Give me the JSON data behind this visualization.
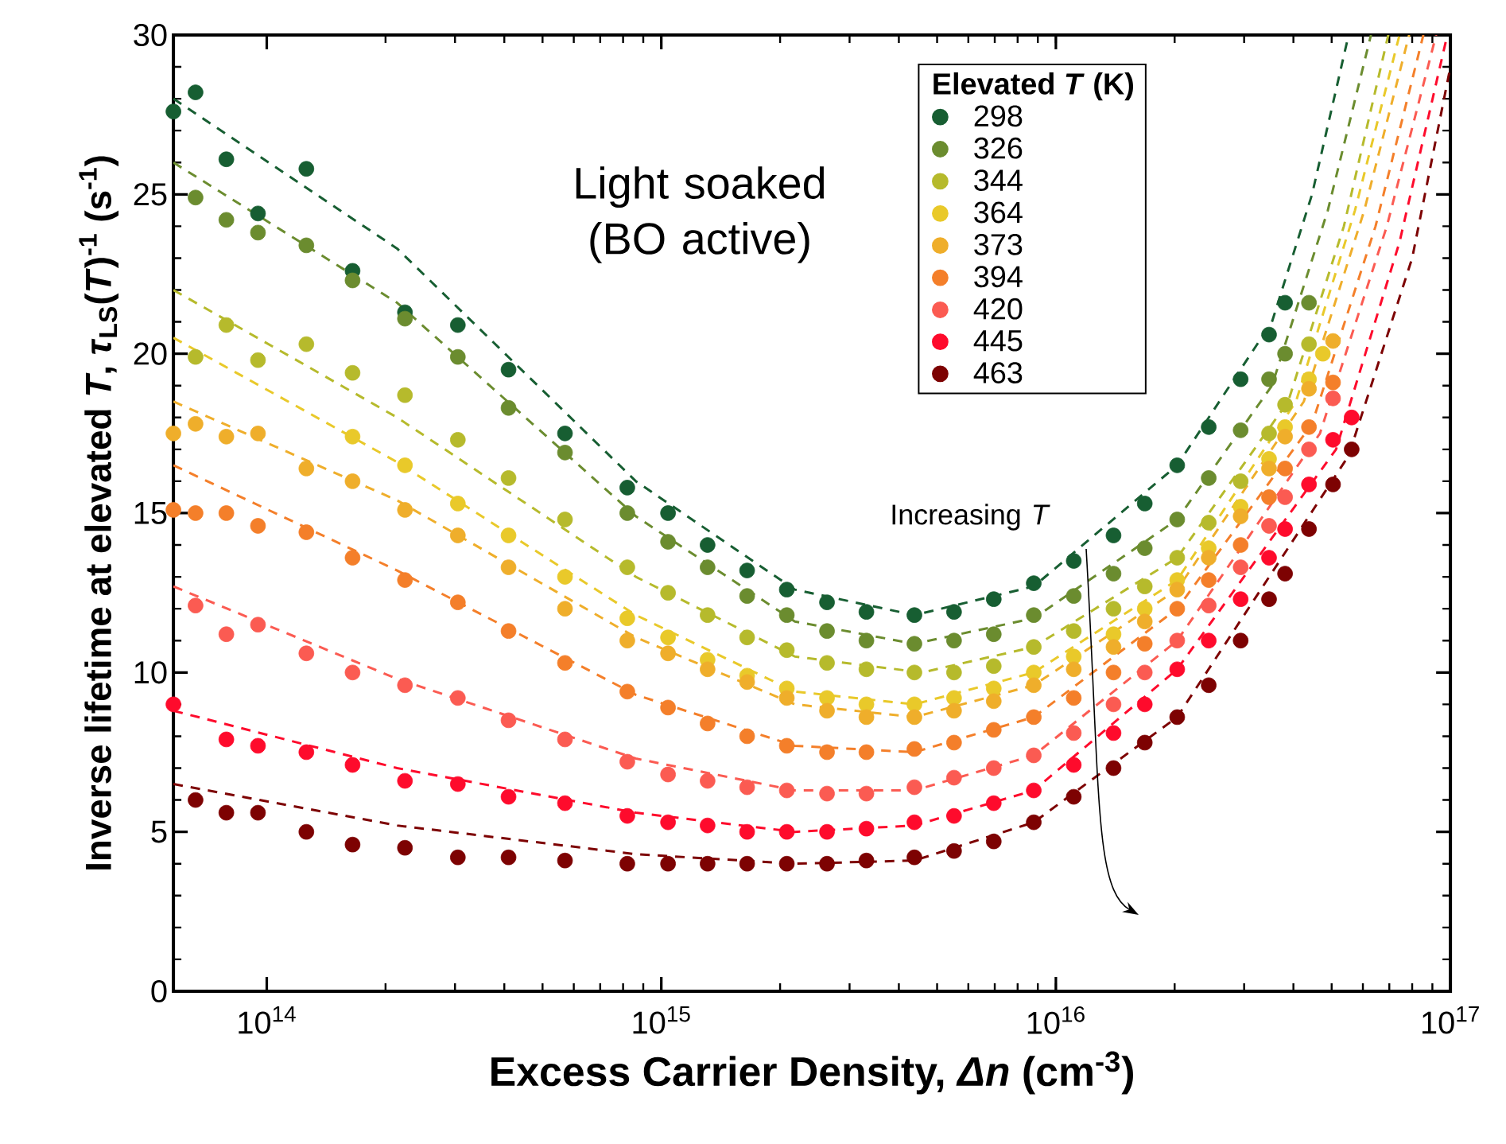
{
  "chart_data": {
    "type": "scatter",
    "xlabel": "Excess Carrier Density, *Δn* (cm$^{-3}$)",
    "ylabel": "Inverse lifetime at elevated *T*, *τ*$_{LS}$(*T*)$^{-1}$ (s$^{-1}$)",
    "legend_title": "Elevated *T* (K)",
    "legend": "top right",
    "marker": "circle",
    "log": "x",
    "xlim": [
      58000000000000.0,
      1e+17
    ],
    "ylim": [
      0,
      30
    ],
    "xticks": [
      {
        "value": 100000000000000.0,
        "label": "10$^{14}$"
      },
      {
        "value": 1000000000000000.0,
        "label": "10$^{15}$"
      },
      {
        "value": 1e+16,
        "label": "10$^{16}$"
      },
      {
        "value": 1e+17,
        "label": "10$^{17}$"
      }
    ],
    "yticks": [
      0,
      5,
      10,
      15,
      20,
      25,
      30
    ],
    "annotations": [
      "Light soaked (BO active)",
      "Increasing *T*"
    ],
    "series": [
      {
        "name": "298",
        "color": "#175e32",
        "x": [
          58000000000000.0,
          66000000000000.0,
          79000000000000.0,
          95000000000000.0,
          126000000000000.0,
          165000000000000.0,
          224000000000000.0,
          305000000000000.0,
          410000000000000.0,
          570000000000000.0,
          820000000000000.0,
          1040000000000000.0,
          1310000000000000.0,
          1650000000000000.0,
          2080000000000000.0,
          2630000000000000.0,
          3310000000000000.0,
          4380000000000000.0,
          5520000000000000.0,
          6960000000000000.0,
          8790000000000000.0,
          1.11e+16,
          1.4e+16,
          1.68e+16,
          2.03e+16,
          2.44e+16,
          2.94e+16,
          3.47e+16,
          3.81e+16
        ],
        "values": [
          27.6,
          28.2,
          26.1,
          24.4,
          25.8,
          22.6,
          21.3,
          20.9,
          19.5,
          17.5,
          15.8,
          15.0,
          14.0,
          13.2,
          12.6,
          12.2,
          11.9,
          11.8,
          11.9,
          12.3,
          12.8,
          13.5,
          14.3,
          15.3,
          16.5,
          17.7,
          19.2,
          20.6,
          21.6
        ]
      },
      {
        "name": "326",
        "color": "#6b8c2f",
        "x": [
          66000000000000.0,
          79000000000000.0,
          95000000000000.0,
          126000000000000.0,
          165000000000000.0,
          224000000000000.0,
          305000000000000.0,
          410000000000000.0,
          570000000000000.0,
          820000000000000.0,
          1040000000000000.0,
          1310000000000000.0,
          1650000000000000.0,
          2080000000000000.0,
          2630000000000000.0,
          3310000000000000.0,
          4380000000000000.0,
          5520000000000000.0,
          6960000000000000.0,
          8790000000000000.0,
          1.11e+16,
          1.4e+16,
          1.68e+16,
          2.03e+16,
          2.44e+16,
          2.94e+16,
          3.47e+16,
          3.81e+16,
          4.38e+16
        ],
        "values": [
          24.9,
          24.2,
          23.8,
          23.4,
          22.3,
          21.1,
          19.9,
          18.3,
          16.9,
          15.0,
          14.1,
          13.3,
          12.4,
          11.8,
          11.3,
          11.0,
          10.9,
          11.0,
          11.2,
          11.8,
          12.4,
          13.1,
          13.9,
          14.8,
          16.1,
          17.6,
          19.2,
          20.0,
          21.6
        ]
      },
      {
        "name": "344",
        "color": "#b6ba2c",
        "x": [
          66000000000000.0,
          79000000000000.0,
          95000000000000.0,
          126000000000000.0,
          165000000000000.0,
          224000000000000.0,
          305000000000000.0,
          410000000000000.0,
          570000000000000.0,
          820000000000000.0,
          1040000000000000.0,
          1310000000000000.0,
          1650000000000000.0,
          2080000000000000.0,
          2630000000000000.0,
          3310000000000000.0,
          4380000000000000.0,
          5520000000000000.0,
          6960000000000000.0,
          8790000000000000.0,
          1.11e+16,
          1.4e+16,
          1.68e+16,
          2.03e+16,
          2.44e+16,
          2.94e+16,
          3.47e+16,
          3.81e+16,
          4.38e+16
        ],
        "values": [
          19.9,
          20.9,
          19.8,
          20.3,
          19.4,
          18.7,
          17.3,
          16.1,
          14.8,
          13.3,
          12.5,
          11.8,
          11.1,
          10.7,
          10.3,
          10.1,
          10.0,
          10.0,
          10.2,
          10.8,
          11.3,
          12.0,
          12.7,
          13.6,
          14.7,
          16.0,
          17.5,
          18.4,
          20.3
        ]
      },
      {
        "name": "364",
        "color": "#e9c92a",
        "x": [
          165000000000000.0,
          224000000000000.0,
          305000000000000.0,
          410000000000000.0,
          570000000000000.0,
          820000000000000.0,
          1040000000000000.0,
          1310000000000000.0,
          1650000000000000.0,
          2080000000000000.0,
          2630000000000000.0,
          3310000000000000.0,
          4380000000000000.0,
          5520000000000000.0,
          6960000000000000.0,
          8790000000000000.0,
          1.11e+16,
          1.4e+16,
          1.68e+16,
          2.03e+16,
          2.44e+16,
          2.94e+16,
          3.47e+16,
          3.81e+16,
          4.38e+16,
          4.75e+16
        ],
        "values": [
          17.4,
          16.5,
          15.3,
          14.3,
          13.0,
          11.7,
          11.1,
          10.4,
          9.9,
          9.5,
          9.2,
          9.0,
          9.0,
          9.2,
          9.5,
          10.0,
          10.5,
          11.2,
          12.0,
          12.9,
          13.9,
          15.2,
          16.7,
          17.7,
          19.2,
          20.0
        ]
      },
      {
        "name": "373",
        "color": "#efae2b",
        "x": [
          58000000000000.0,
          66000000000000.0,
          79000000000000.0,
          95000000000000.0,
          126000000000000.0,
          165000000000000.0,
          224000000000000.0,
          305000000000000.0,
          410000000000000.0,
          570000000000000.0,
          820000000000000.0,
          1040000000000000.0,
          1310000000000000.0,
          1650000000000000.0,
          2080000000000000.0,
          2630000000000000.0,
          3310000000000000.0,
          4380000000000000.0,
          5520000000000000.0,
          6960000000000000.0,
          8790000000000000.0,
          1.11e+16,
          1.4e+16,
          1.68e+16,
          2.03e+16,
          2.44e+16,
          2.94e+16,
          3.47e+16,
          3.81e+16,
          4.38e+16,
          5.04e+16
        ],
        "values": [
          17.5,
          17.8,
          17.4,
          17.5,
          16.4,
          16.0,
          15.1,
          14.3,
          13.3,
          12.0,
          11.0,
          10.6,
          10.1,
          9.7,
          9.2,
          8.8,
          8.6,
          8.6,
          8.8,
          9.1,
          9.6,
          10.1,
          10.8,
          11.6,
          12.6,
          13.6,
          14.9,
          16.4,
          17.4,
          18.9,
          20.4
        ]
      },
      {
        "name": "394",
        "color": "#f47f2a",
        "x": [
          58000000000000.0,
          66000000000000.0,
          79000000000000.0,
          95000000000000.0,
          126000000000000.0,
          165000000000000.0,
          224000000000000.0,
          305000000000000.0,
          410000000000000.0,
          570000000000000.0,
          820000000000000.0,
          1040000000000000.0,
          1310000000000000.0,
          1650000000000000.0,
          2080000000000000.0,
          2630000000000000.0,
          3310000000000000.0,
          4380000000000000.0,
          5520000000000000.0,
          6960000000000000.0,
          8790000000000000.0,
          1.11e+16,
          1.4e+16,
          1.68e+16,
          2.03e+16,
          2.44e+16,
          2.94e+16,
          3.47e+16,
          3.81e+16,
          4.38e+16,
          5.04e+16
        ],
        "values": [
          15.1,
          15.0,
          15.0,
          14.6,
          14.4,
          13.6,
          12.9,
          12.2,
          11.3,
          10.3,
          9.4,
          8.9,
          8.4,
          8.0,
          7.7,
          7.5,
          7.5,
          7.6,
          7.8,
          8.2,
          8.6,
          9.2,
          10.0,
          10.9,
          12.0,
          12.9,
          14.0,
          15.5,
          16.4,
          17.7,
          19.1
        ]
      },
      {
        "name": "420",
        "color": "#fb5b52",
        "x": [
          66000000000000.0,
          79000000000000.0,
          95000000000000.0,
          126000000000000.0,
          165000000000000.0,
          224000000000000.0,
          305000000000000.0,
          410000000000000.0,
          570000000000000.0,
          820000000000000.0,
          1040000000000000.0,
          1310000000000000.0,
          1650000000000000.0,
          2080000000000000.0,
          2630000000000000.0,
          3310000000000000.0,
          4380000000000000.0,
          5520000000000000.0,
          6960000000000000.0,
          8790000000000000.0,
          1.11e+16,
          1.4e+16,
          1.68e+16,
          2.03e+16,
          2.44e+16,
          2.94e+16,
          3.47e+16,
          3.81e+16,
          4.38e+16,
          5.04e+16
        ],
        "values": [
          12.1,
          11.2,
          11.5,
          10.6,
          10.0,
          9.6,
          9.2,
          8.5,
          7.9,
          7.2,
          6.8,
          6.6,
          6.4,
          6.3,
          6.2,
          6.2,
          6.4,
          6.7,
          7.0,
          7.4,
          8.1,
          9.0,
          10.0,
          11.0,
          12.1,
          13.3,
          14.6,
          15.5,
          17.0,
          18.6
        ]
      },
      {
        "name": "445",
        "color": "#fe0b2c",
        "x": [
          58000000000000.0,
          79000000000000.0,
          95000000000000.0,
          126000000000000.0,
          165000000000000.0,
          224000000000000.0,
          305000000000000.0,
          410000000000000.0,
          570000000000000.0,
          820000000000000.0,
          1040000000000000.0,
          1310000000000000.0,
          1650000000000000.0,
          2080000000000000.0,
          2630000000000000.0,
          3310000000000000.0,
          4380000000000000.0,
          5520000000000000.0,
          6960000000000000.0,
          8790000000000000.0,
          1.11e+16,
          1.4e+16,
          1.68e+16,
          2.03e+16,
          2.44e+16,
          2.94e+16,
          3.47e+16,
          3.81e+16,
          4.38e+16,
          5.04e+16,
          5.62e+16
        ],
        "values": [
          9.0,
          7.9,
          7.7,
          7.5,
          7.1,
          6.6,
          6.5,
          6.1,
          5.9,
          5.5,
          5.3,
          5.2,
          5.0,
          5.0,
          5.0,
          5.1,
          5.3,
          5.5,
          5.9,
          6.3,
          7.1,
          8.1,
          9.0,
          10.1,
          11.0,
          12.3,
          13.6,
          14.5,
          15.9,
          17.3,
          18.0
        ]
      },
      {
        "name": "463",
        "color": "#7d0202",
        "x": [
          66000000000000.0,
          79000000000000.0,
          95000000000000.0,
          126000000000000.0,
          165000000000000.0,
          224000000000000.0,
          305000000000000.0,
          410000000000000.0,
          570000000000000.0,
          820000000000000.0,
          1040000000000000.0,
          1310000000000000.0,
          1650000000000000.0,
          2080000000000000.0,
          2630000000000000.0,
          3310000000000000.0,
          4380000000000000.0,
          5520000000000000.0,
          6960000000000000.0,
          8790000000000000.0,
          1.11e+16,
          1.4e+16,
          1.68e+16,
          2.03e+16,
          2.44e+16,
          2.94e+16,
          3.47e+16,
          3.81e+16,
          4.38e+16,
          5.04e+16,
          5.62e+16
        ],
        "values": [
          6.0,
          5.6,
          5.6,
          5.0,
          4.6,
          4.5,
          4.2,
          4.2,
          4.1,
          4.0,
          4.0,
          4.0,
          4.0,
          4.0,
          4.0,
          4.1,
          4.2,
          4.4,
          4.7,
          5.3,
          6.1,
          7.0,
          7.8,
          8.6,
          9.6,
          11.0,
          12.3,
          13.1,
          14.5,
          15.9,
          17.0
        ]
      },
      {
        "type": "line",
        "marker": "none",
        "line_style": "dashed",
        "color": "#175e32",
        "x": [
          58000000000000.0,
          214000000000000.0,
          862000000000000.0,
          2180000000000000.0,
          4380000000000000.0,
          8790000000000000.0,
          2.03e+16,
          3.53e+16,
          4.46e+16,
          5.52e+16
        ],
        "values": [
          28.0,
          23.3,
          16.0,
          12.6,
          11.8,
          12.7,
          16.5,
          21.0,
          25.0,
          30
        ]
      },
      {
        "type": "line",
        "marker": "none",
        "line_style": "dashed",
        "color": "#6b8c2f",
        "x": [
          58000000000000.0,
          214000000000000.0,
          862000000000000.0,
          2180000000000000.0,
          4380000000000000.0,
          8790000000000000.0,
          2.03e+16,
          3.53e+16,
          4.89e+16,
          6.29e+16
        ],
        "values": [
          26.0,
          21.6,
          14.9,
          11.6,
          10.9,
          11.7,
          14.8,
          19.0,
          24.5,
          30
        ]
      },
      {
        "type": "line",
        "marker": "none",
        "line_style": "dashed",
        "color": "#b6ba2c",
        "x": [
          58000000000000.0,
          214000000000000.0,
          862000000000000.0,
          2180000000000000.0,
          4580000000000000.0,
          8790000000000000.0,
          2.03e+16,
          3.88e+16,
          5.37e+16,
          6.96e+16
        ],
        "values": [
          22.0,
          18.0,
          13.0,
          10.5,
          10.0,
          10.8,
          13.6,
          18.5,
          24.0,
          30
        ]
      },
      {
        "type": "line",
        "marker": "none",
        "line_style": "dashed",
        "color": "#e9c92a",
        "x": [
          58000000000000.0,
          214000000000000.0,
          862000000000000.0,
          2180000000000000.0,
          4380000000000000.0,
          8790000000000000.0,
          2.03e+16,
          4.06e+16,
          5.73e+16,
          7.43e+16
        ],
        "values": [
          20.5,
          16.6,
          11.8,
          9.4,
          9.0,
          10.0,
          12.9,
          18.5,
          24.5,
          30
        ]
      },
      {
        "type": "line",
        "marker": "none",
        "line_style": "dashed",
        "color": "#efae2b",
        "x": [
          58000000000000.0,
          214000000000000.0,
          862000000000000.0,
          2180000000000000.0,
          4380000000000000.0,
          8790000000000000.0,
          2.03e+16,
          4.25e+16,
          6.05e+16,
          7.86e+16
        ],
        "values": [
          18.5,
          15.4,
          11.1,
          9.0,
          8.6,
          9.6,
          12.6,
          18.5,
          24.5,
          30
        ]
      },
      {
        "type": "line",
        "marker": "none",
        "line_style": "dashed",
        "color": "#f47f2a",
        "x": [
          58000000000000.0,
          214000000000000.0,
          862000000000000.0,
          2180000000000000.0,
          4380000000000000.0,
          8790000000000000.0,
          2.03e+16,
          4.46e+16,
          6.46e+16,
          8.54e+16
        ],
        "values": [
          16.5,
          13.2,
          9.3,
          7.7,
          7.5,
          8.6,
          12.0,
          17.8,
          24.0,
          30
        ]
      },
      {
        "type": "line",
        "marker": "none",
        "line_style": "dashed",
        "color": "#fb5b52",
        "x": [
          58000000000000.0,
          214000000000000.0,
          862000000000000.0,
          2180000000000000.0,
          4380000000000000.0,
          8790000000000000.0,
          2.03e+16,
          4.67e+16,
          6.9e+16,
          9.2e+16
        ],
        "values": [
          12.7,
          9.8,
          7.3,
          6.3,
          6.3,
          7.4,
          11.0,
          17.5,
          24.0,
          30
        ]
      },
      {
        "type": "line",
        "marker": "none",
        "line_style": "dashed",
        "color": "#fe0b2c",
        "x": [
          58000000000000.0,
          214000000000000.0,
          862000000000000.0,
          2180000000000000.0,
          4380000000000000.0,
          8790000000000000.0,
          2.03e+16,
          5.13e+16,
          7.43e+16,
          9.82e+16
        ],
        "values": [
          8.8,
          7.0,
          5.6,
          5.0,
          5.2,
          6.3,
          10.1,
          17.0,
          23.5,
          30
        ]
      },
      {
        "type": "line",
        "marker": "none",
        "line_style": "dashed",
        "color": "#7d0202",
        "x": [
          58000000000000.0,
          214000000000000.0,
          862000000000000.0,
          2180000000000000.0,
          4380000000000000.0,
          8790000000000000.0,
          2.03e+16,
          5.52e+16,
          8e+16,
          1e+17
        ],
        "values": [
          6.5,
          5.2,
          4.3,
          4.0,
          4.1,
          5.3,
          8.6,
          16.8,
          23.0,
          29.0
        ]
      }
    ]
  }
}
